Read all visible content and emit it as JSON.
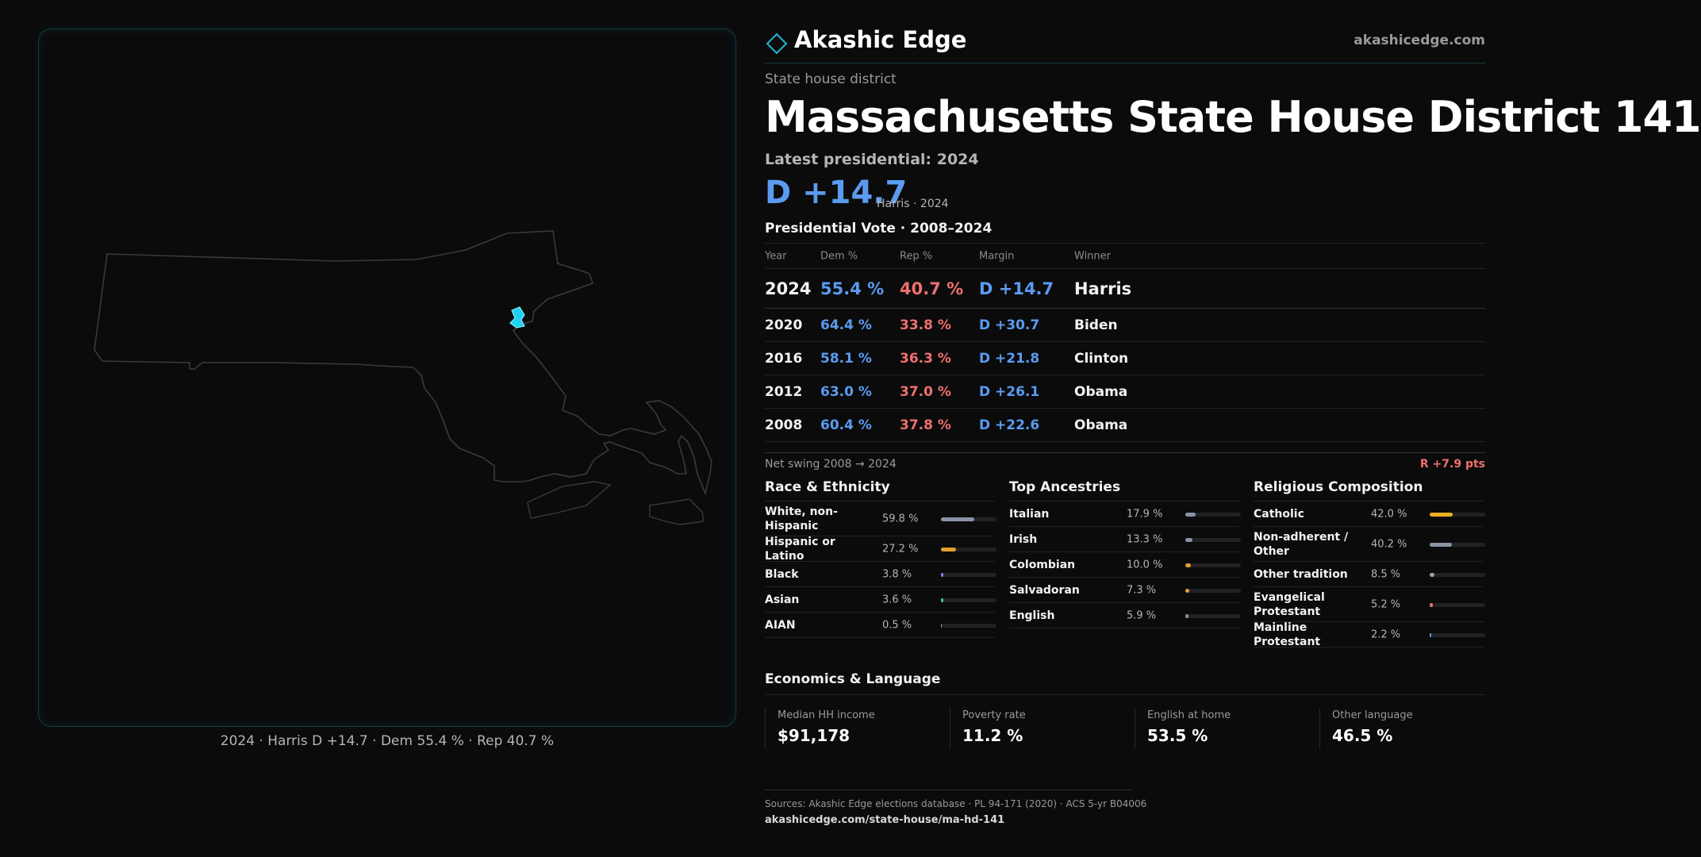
{
  "colors": {
    "dem": "#5b9bf0",
    "rep": "#ef6f6f",
    "highlight": "#1fd3f0",
    "outline": "#3a3a3e"
  },
  "map": {
    "caption": "2024 · Harris D +14.7 · Dem 55.4 % · Rep 40.7 %"
  },
  "brand": {
    "name": "Akashic Edge",
    "url": "akashicedge.com"
  },
  "header": {
    "kicker": "State house district",
    "title": "Massachusetts State House District 141",
    "latest_label": "Latest presidential: 2024",
    "big_margin": "D +14.7",
    "big_sub": "Harris · 2024"
  },
  "presidential": {
    "title": "Presidential Vote · 2008–2024",
    "columns": {
      "year": "Year",
      "dem": "Dem %",
      "rep": "Rep %",
      "margin": "Margin",
      "winner": "Winner"
    },
    "rows": [
      {
        "year": "2024",
        "dem": "55.4 %",
        "rep": "40.7 %",
        "margin": "D +14.7",
        "winner": "Harris"
      },
      {
        "year": "2020",
        "dem": "64.4 %",
        "rep": "33.8 %",
        "margin": "D +30.7",
        "winner": "Biden"
      },
      {
        "year": "2016",
        "dem": "58.1 %",
        "rep": "36.3 %",
        "margin": "D +21.8",
        "winner": "Clinton"
      },
      {
        "year": "2012",
        "dem": "63.0 %",
        "rep": "37.0 %",
        "margin": "D +26.1",
        "winner": "Obama"
      },
      {
        "year": "2008",
        "dem": "60.4 %",
        "rep": "37.8 %",
        "margin": "D +22.6",
        "winner": "Obama"
      }
    ],
    "swing_label": "Net swing 2008 → 2024",
    "swing_value": "R +7.9 pts"
  },
  "race": {
    "title": "Race & Ethnicity",
    "items": [
      {
        "label": "White, non-Hispanic",
        "value": "59.8 %",
        "pct": 59.8,
        "color": "#8a93a6"
      },
      {
        "label": "Hispanic or Latino",
        "value": "27.2 %",
        "pct": 27.2,
        "color": "#e0a030"
      },
      {
        "label": "Black",
        "value": "3.8 %",
        "pct": 3.8,
        "color": "#8a7cf0"
      },
      {
        "label": "Asian",
        "value": "3.6 %",
        "pct": 3.6,
        "color": "#3cc48a"
      },
      {
        "label": "AIAN",
        "value": "0.5 %",
        "pct": 0.5,
        "color": "#8a93a6"
      }
    ]
  },
  "ancestry": {
    "title": "Top Ancestries",
    "items": [
      {
        "label": "Italian",
        "value": "17.9 %",
        "pct": 17.9,
        "color": "#8a93a6"
      },
      {
        "label": "Irish",
        "value": "13.3 %",
        "pct": 13.3,
        "color": "#8a93a6"
      },
      {
        "label": "Colombian",
        "value": "10.0 %",
        "pct": 10.0,
        "color": "#e0a030"
      },
      {
        "label": "Salvadoran",
        "value": "7.3 %",
        "pct": 7.3,
        "color": "#e0a030"
      },
      {
        "label": "English",
        "value": "5.9 %",
        "pct": 5.9,
        "color": "#8a93a6"
      }
    ]
  },
  "religion": {
    "title": "Religious Composition",
    "items": [
      {
        "label": "Catholic",
        "value": "42.0 %",
        "pct": 42.0,
        "color": "#e8b020"
      },
      {
        "label": "Non-adherent / Other",
        "value": "40.2 %",
        "pct": 40.2,
        "color": "#8a93a6"
      },
      {
        "label": "Other tradition",
        "value": "8.5 %",
        "pct": 8.5,
        "color": "#a0a0a6"
      },
      {
        "label": "Evangelical Protestant",
        "value": "5.2 %",
        "pct": 5.2,
        "color": "#ef6f6f"
      },
      {
        "label": "Mainline Protestant",
        "value": "2.2 %",
        "pct": 2.2,
        "color": "#5b9bf0"
      }
    ]
  },
  "economics": {
    "title": "Economics & Language",
    "items": [
      {
        "label": "Median HH income",
        "value": "$91,178"
      },
      {
        "label": "Poverty rate",
        "value": "11.2 %"
      },
      {
        "label": "English at home",
        "value": "53.5 %"
      },
      {
        "label": "Other language",
        "value": "46.5 %"
      }
    ]
  },
  "sources": {
    "line1": "Sources: Akashic Edge elections database · PL 94-171 (2020) · ACS 5-yr B04006",
    "line2": "akashicedge.com/state-house/ma-hd-141"
  }
}
